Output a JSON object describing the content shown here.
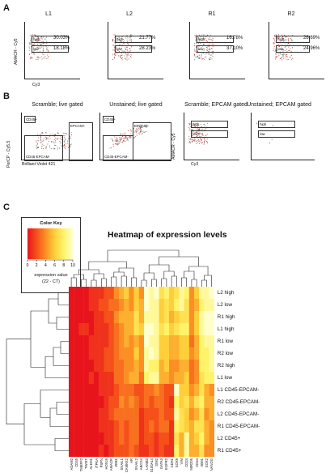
{
  "panels": {
    "a": "A",
    "b": "B",
    "c": "C"
  },
  "panel_a": {
    "titles": [
      "L1",
      "L2",
      "R1",
      "R2"
    ],
    "ylabel": "AMACR - Cy5",
    "xlabel": "Cy3",
    "gate_high": "high",
    "gate_low": "low",
    "pct_high": [
      "30.03%",
      "21.77%",
      "16.78%",
      "26.69%"
    ],
    "pct_low": [
      "18.18%",
      "28.23%",
      "37.10%",
      "24.96%"
    ]
  },
  "panel_b": {
    "titles": [
      "Scramble; live gated",
      "Unstained; live gated",
      "Scramble; EPCAM gated",
      "Unstained; EPCAM gated"
    ],
    "ylabel_left": "PerCP - Cy5.5",
    "xlabel_left": "Brilliant Violet 421",
    "ylabel_right": "AMACR - Cy5",
    "xlabel_right": "Cy3",
    "gate_cd45": "CD45+",
    "gate_epcam": "EPCAM+",
    "gate_dn": "CD45-EPCAM-",
    "gate_high": "high",
    "gate_low": "low"
  },
  "color_key": {
    "title": "Color Key",
    "ticks": [
      "0",
      "2",
      "4",
      "6",
      "8",
      "10"
    ],
    "label_line1": "expression value",
    "label_line2": "(22 - CT)",
    "colors": [
      "#e8141c",
      "#f5501a",
      "#fb8f24",
      "#ffcf3a",
      "#fff36a",
      "#ffffcc"
    ]
  },
  "chart_data": {
    "type": "heatmap",
    "title": "Heatmap of expression levels",
    "rows": [
      "L2 high",
      "L2 low",
      "R1 high",
      "L1 high",
      "R1 low",
      "R2 low",
      "R2 high",
      "L1 low",
      "L1 CD45-EPCAM-",
      "R2 CD45-EPCAM-",
      "L2 CD45-EPCAM-",
      "R1 CD45-EPCAM-",
      "L2 CD45+",
      "R1 CD45+"
    ],
    "columns": [
      "ADAM2",
      "CD45",
      "TMEFF2",
      "TWIST",
      "ALDH1",
      "ITPKA",
      "PSPN",
      "HOXc6",
      "AMACR",
      "ZEB1",
      "SNAIL1",
      "CAMKK2",
      "AR",
      "SNAIL2",
      "ABCG4",
      "LAMB3",
      "S100A14",
      "SIM2",
      "GATA3",
      "EGFR2",
      "CDH1",
      "SOX9",
      "VIM",
      "CD24",
      "MIR205",
      "CD44",
      "BMI1",
      "SOX2",
      "NANOG"
    ],
    "values": [
      [
        0,
        0,
        0,
        0,
        1,
        1,
        1,
        2,
        2,
        4,
        5,
        6,
        4,
        6,
        4,
        10,
        9,
        10,
        7,
        8,
        6,
        7,
        9,
        8,
        4,
        6,
        9,
        9,
        10
      ],
      [
        0,
        0,
        0,
        0,
        1,
        1,
        2,
        2,
        3,
        3,
        4,
        5,
        4,
        6,
        5,
        10,
        9,
        9,
        6,
        7,
        6,
        8,
        9,
        7,
        4,
        5,
        8,
        9,
        9
      ],
      [
        0,
        0,
        0,
        0,
        0,
        1,
        1,
        2,
        2,
        4,
        5,
        5,
        5,
        7,
        5,
        9,
        9,
        9,
        6,
        7,
        5,
        6,
        7,
        7,
        4,
        6,
        9,
        10,
        10
      ],
      [
        0,
        0,
        1,
        1,
        0,
        1,
        1,
        1,
        2,
        3,
        4,
        5,
        5,
        7,
        6,
        10,
        10,
        9,
        7,
        8,
        6,
        7,
        8,
        8,
        4,
        6,
        9,
        10,
        10
      ],
      [
        0,
        0,
        0,
        0,
        1,
        1,
        1,
        1,
        2,
        3,
        4,
        5,
        4,
        5,
        4,
        10,
        9,
        9,
        6,
        6,
        5,
        5,
        6,
        6,
        3,
        5,
        8,
        9,
        9
      ],
      [
        0,
        0,
        0,
        0,
        1,
        1,
        1,
        2,
        2,
        3,
        4,
        4,
        4,
        6,
        4,
        9,
        10,
        9,
        6,
        6,
        5,
        5,
        6,
        6,
        4,
        5,
        8,
        8,
        9
      ],
      [
        0,
        0,
        0,
        0,
        0,
        1,
        1,
        2,
        2,
        3,
        3,
        4,
        4,
        5,
        4,
        9,
        8,
        8,
        5,
        6,
        4,
        4,
        5,
        5,
        3,
        4,
        8,
        8,
        9
      ],
      [
        0,
        0,
        0,
        0,
        1,
        0,
        1,
        1,
        1,
        3,
        3,
        4,
        5,
        5,
        3,
        8,
        9,
        9,
        5,
        5,
        4,
        5,
        5,
        6,
        3,
        4,
        7,
        8,
        8
      ],
      [
        0,
        0,
        0,
        0,
        0,
        0,
        1,
        1,
        1,
        2,
        3,
        3,
        3,
        2,
        2,
        3,
        3,
        4,
        3,
        2,
        2,
        10,
        6,
        6,
        4,
        5,
        7,
        5,
        4
      ],
      [
        0,
        0,
        0,
        0,
        0,
        0,
        0,
        1,
        2,
        2,
        4,
        3,
        4,
        3,
        2,
        3,
        2,
        3,
        3,
        2,
        1,
        8,
        6,
        7,
        5,
        7,
        8,
        5,
        5
      ],
      [
        0,
        0,
        0,
        0,
        0,
        0,
        1,
        1,
        2,
        3,
        3,
        3,
        3,
        3,
        1,
        2,
        2,
        2,
        3,
        2,
        2,
        9,
        7,
        6,
        4,
        5,
        7,
        4,
        5
      ],
      [
        0,
        0,
        0,
        0,
        0,
        0,
        1,
        1,
        1,
        2,
        3,
        2,
        3,
        3,
        1,
        2,
        3,
        2,
        3,
        3,
        1,
        8,
        7,
        6,
        5,
        7,
        7,
        5,
        4
      ],
      [
        0,
        0,
        0,
        0,
        0,
        0,
        0,
        1,
        1,
        2,
        3,
        2,
        3,
        3,
        1,
        2,
        2,
        1,
        2,
        2,
        1,
        7,
        5,
        9,
        5,
        6,
        8,
        5,
        4
      ],
      [
        0,
        0,
        0,
        0,
        0,
        0,
        1,
        0,
        1,
        2,
        2,
        2,
        3,
        2,
        1,
        1,
        2,
        1,
        2,
        1,
        1,
        8,
        5,
        9,
        5,
        5,
        7,
        4,
        4
      ]
    ]
  }
}
